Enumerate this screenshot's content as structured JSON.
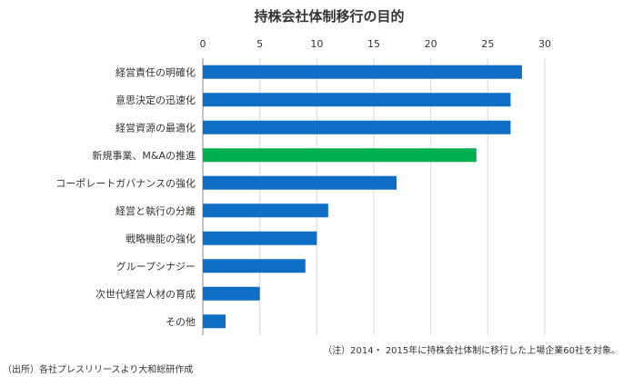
{
  "chart_data": {
    "type": "bar",
    "orientation": "horizontal",
    "title": "持株会社体制移行の目的",
    "categories": [
      "経営責任の明確化",
      "意思決定の迅速化",
      "経営資源の最適化",
      "新規事業、M&Aの推進",
      "コーポレートガバナンスの強化",
      "経営と執行の分離",
      "戦略機能の強化",
      "グループシナジー",
      "次世代経営人材の育成",
      "その他"
    ],
    "values": [
      28,
      27,
      27,
      24,
      17,
      11,
      10,
      9,
      5,
      2
    ],
    "xlim": [
      0,
      30
    ],
    "xticks": [
      "0",
      "5",
      "10",
      "15",
      "20",
      "25",
      "30"
    ],
    "grid": true,
    "highlight_index": 3,
    "colors": {
      "bar": "#0f6fc6",
      "highlight": "#00b050",
      "grid": "#d9d9d9",
      "axis": "#888888"
    },
    "note": "（注）2014・ 2015年に持株会社体制に移行した上場企業60社を対象。",
    "source": "（出所）各社プレスリリースより大和総研作成"
  }
}
